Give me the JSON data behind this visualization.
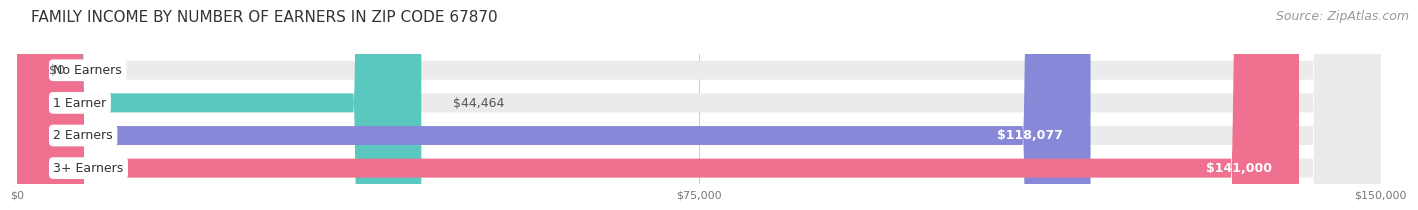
{
  "title": "FAMILY INCOME BY NUMBER OF EARNERS IN ZIP CODE 67870",
  "source": "Source: ZipAtlas.com",
  "categories": [
    "No Earners",
    "1 Earner",
    "2 Earners",
    "3+ Earners"
  ],
  "values": [
    0,
    44464,
    118077,
    141000
  ],
  "bar_colors": [
    "#c9a0dc",
    "#5bc8c0",
    "#8888d8",
    "#f07090"
  ],
  "bar_bg_color": "#ebebeb",
  "value_labels": [
    "$0",
    "$44,464",
    "$118,077",
    "$141,000"
  ],
  "label_inside": [
    false,
    false,
    true,
    true
  ],
  "x_ticks": [
    0,
    75000,
    150000
  ],
  "x_tick_labels": [
    "$0",
    "$75,000",
    "$150,000"
  ],
  "x_max": 150000,
  "title_fontsize": 11,
  "source_fontsize": 9,
  "label_fontsize": 9,
  "value_fontsize": 9,
  "tick_fontsize": 8,
  "background_color": "#ffffff"
}
